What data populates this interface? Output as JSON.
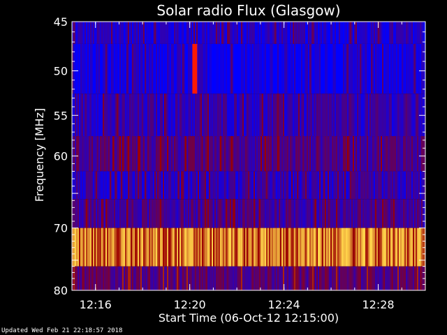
{
  "chart_data": {
    "type": "heatmap",
    "title": "Solar radio Flux (Glasgow)",
    "xlabel": "Start Time (06-Oct-12 12:15:00)",
    "ylabel": "Frequency [MHz]",
    "x_tick_labels": [
      "12:16",
      "12:20",
      "12:24",
      "12:28"
    ],
    "x_tick_minutes": [
      16,
      20,
      24,
      28
    ],
    "x_range_minutes": [
      15,
      30
    ],
    "y_tick_labels": [
      "45",
      "50",
      "55",
      "60",
      "70",
      "80"
    ],
    "y_tick_values": [
      45,
      50,
      55,
      60,
      70,
      80
    ],
    "y_range_mhz": [
      45,
      80
    ],
    "y_scale": "log",
    "bands": [
      {
        "from_mhz": 45.0,
        "to_mhz": 47.2,
        "level": 0.15
      },
      {
        "from_mhz": 47.2,
        "to_mhz": 52.5,
        "level": 0.08
      },
      {
        "from_mhz": 52.5,
        "to_mhz": 57.5,
        "level": 0.22
      },
      {
        "from_mhz": 57.5,
        "to_mhz": 62.0,
        "level": 0.35
      },
      {
        "from_mhz": 62.0,
        "to_mhz": 65.8,
        "level": 0.2
      },
      {
        "from_mhz": 65.8,
        "to_mhz": 70.0,
        "level": 0.3
      },
      {
        "from_mhz": 70.0,
        "to_mhz": 76.0,
        "level": 0.85
      },
      {
        "from_mhz": 76.0,
        "to_mhz": 80.0,
        "level": 0.4
      }
    ],
    "burst": {
      "minute": 20.2,
      "from_mhz": 47.2,
      "to_mhz": 52.5
    },
    "colors": {
      "low": "#0000ff",
      "mid": "#9b0000",
      "high": "#ffd24a"
    }
  },
  "footer": "Updated Wed Feb 21 22:18:57 2018"
}
